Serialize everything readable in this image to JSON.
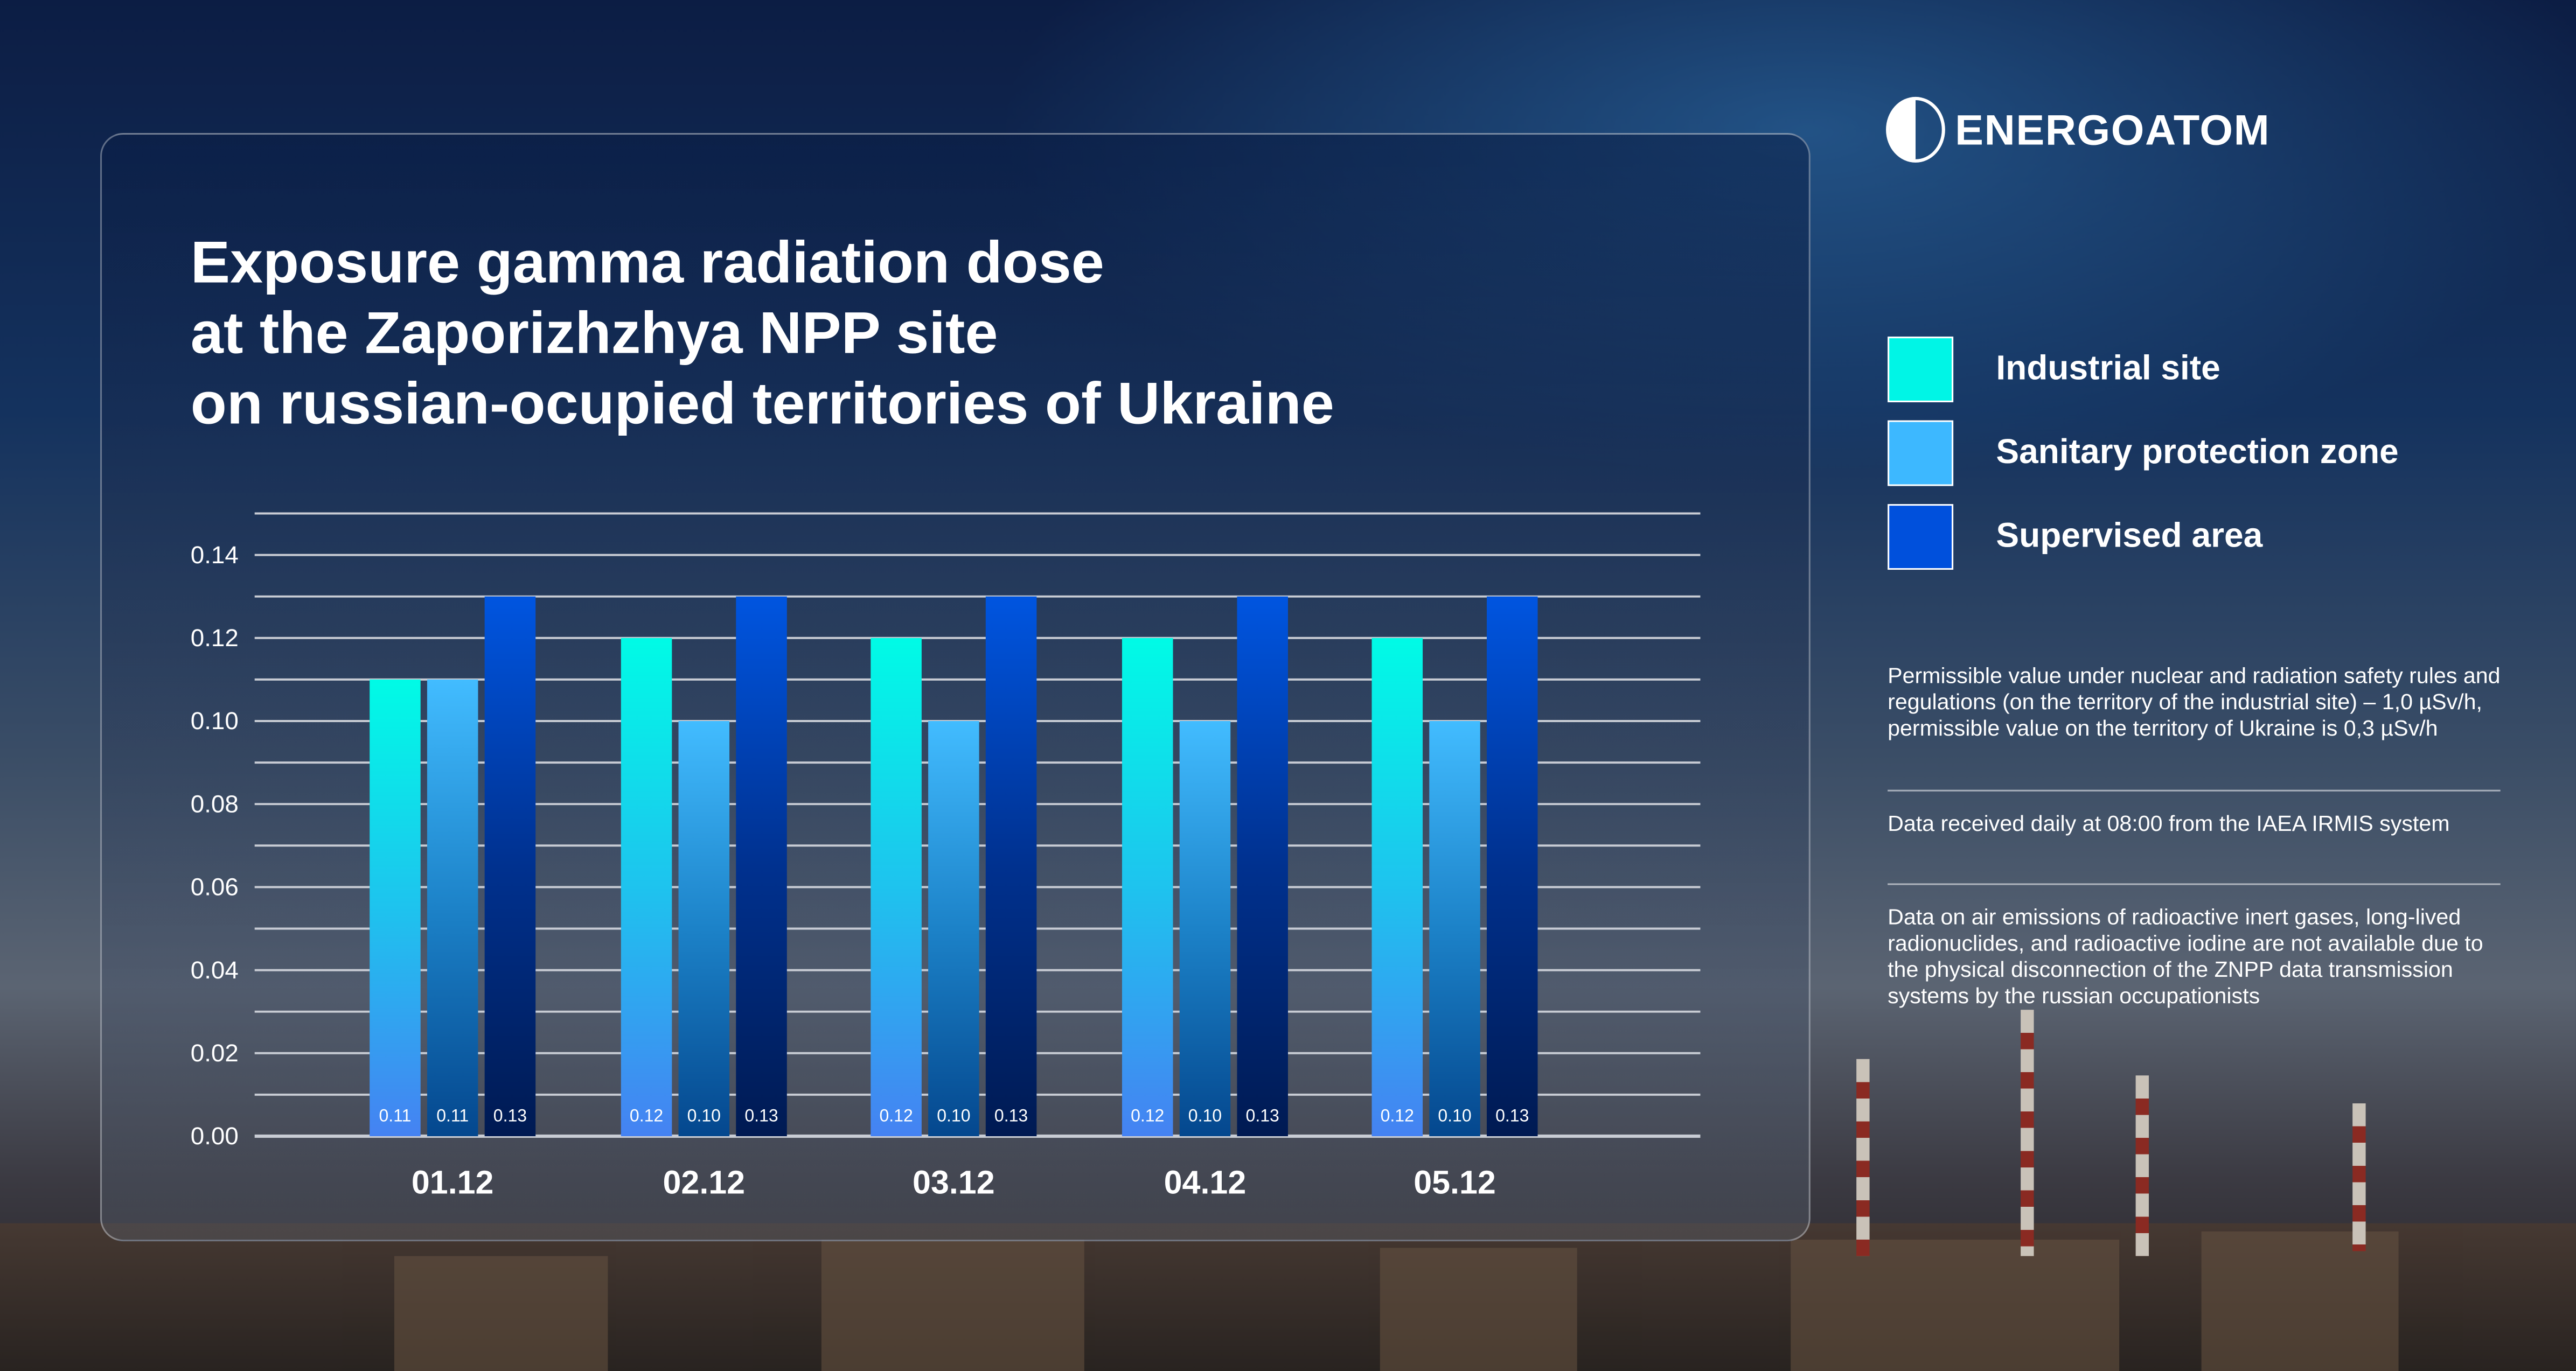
{
  "logo": {
    "name": "ENERGOATOM"
  },
  "colors": {
    "industrial": "#00f5e6",
    "sanitary": "#3db8ff",
    "supervised": "#0050dc"
  },
  "chart_data": {
    "type": "bar",
    "title_lines": [
      "Exposure gamma radiation dose",
      "at the Zaporizhzhya NPP site",
      "on russian-ocupied territories of Ukraine"
    ],
    "categories": [
      "01.12",
      "02.12",
      "03.12",
      "04.12",
      "05.12"
    ],
    "series": [
      {
        "name": "Industrial site",
        "values": [
          0.11,
          0.12,
          0.12,
          0.12,
          0.12
        ]
      },
      {
        "name": "Sanitary protection zone",
        "values": [
          0.11,
          0.1,
          0.1,
          0.1,
          0.1
        ]
      },
      {
        "name": "Supervised area",
        "values": [
          0.13,
          0.13,
          0.13,
          0.13,
          0.13
        ]
      }
    ],
    "value_labels": [
      [
        "0.11",
        "0.11",
        "0.13"
      ],
      [
        "0.12",
        "0.10",
        "0.13"
      ],
      [
        "0.12",
        "0.10",
        "0.13"
      ],
      [
        "0.12",
        "0.10",
        "0.13"
      ],
      [
        "0.12",
        "0.10",
        "0.13"
      ]
    ],
    "yticks": [
      "0.00",
      "0.02",
      "0.04",
      "0.06",
      "0.08",
      "0.10",
      "0.12",
      "0.14"
    ],
    "ylim": [
      0,
      0.15
    ],
    "grid": true,
    "legend_position": "right"
  },
  "notes": [
    "Permissible value under nuclear and radiation safety rules and regulations (on the territory of the industrial site) – 1,0 µSv/h, permissible value on the territory of Ukraine is 0,3 µSv/h",
    "Data received daily at 08:00 from the IAEA IRMIS system",
    "Data on air emissions of radioactive inert gases, long-lived radionuclides, and radioactive iodine are not available due to the physical disconnection of the ZNPP data transmission systems by the russian occupationists"
  ]
}
